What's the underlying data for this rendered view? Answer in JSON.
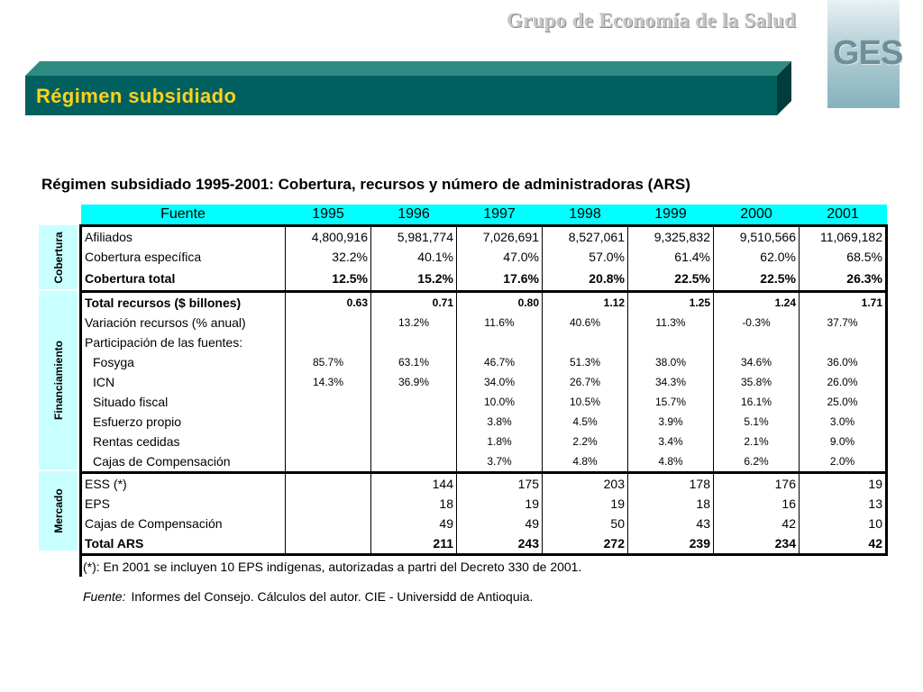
{
  "header": {
    "brand": "Grupo de Economía de la Salud",
    "logo": "GES"
  },
  "banner": {
    "title": "Régimen subsidiado"
  },
  "subtitle": "Régimen subsidiado 1995-2001: Cobertura, recursos y número de administradoras (ARS)",
  "table": {
    "columns": [
      "Fuente",
      "1995",
      "1996",
      "1997",
      "1998",
      "1999",
      "2000",
      "2001"
    ],
    "sections": {
      "cobertura": {
        "label": "Cobertura",
        "rows": [
          {
            "label": "Afiliados",
            "values": [
              "4,800,916",
              "5,981,774",
              "7,026,691",
              "8,527,061",
              "9,325,832",
              "9,510,566",
              "11,069,182"
            ]
          },
          {
            "label": "Cobertura específica",
            "values": [
              "32.2%",
              "40.1%",
              "47.0%",
              "57.0%",
              "61.4%",
              "62.0%",
              "68.5%"
            ]
          },
          {
            "label": "Cobertura total",
            "values": [
              "12.5%",
              "15.2%",
              "17.6%",
              "20.8%",
              "22.5%",
              "22.5%",
              "26.3%"
            ]
          }
        ]
      },
      "financiamiento": {
        "label": "Financiamiento",
        "rows": [
          {
            "label": "Total recursos ($ billones)",
            "values": [
              "0.63",
              "0.71",
              "0.80",
              "1.12",
              "1.25",
              "1.24",
              "1.71"
            ]
          },
          {
            "label": "Variación recursos (% anual)",
            "values": [
              "",
              "13.2%",
              "11.6%",
              "40.6%",
              "11.3%",
              "-0.3%",
              "37.7%"
            ]
          },
          {
            "label": "Participación de las fuentes:",
            "values": [
              "",
              "",
              "",
              "",
              "",
              "",
              ""
            ]
          },
          {
            "label": "Fosyga",
            "values": [
              "85.7%",
              "63.1%",
              "46.7%",
              "51.3%",
              "38.0%",
              "34.6%",
              "36.0%"
            ]
          },
          {
            "label": "ICN",
            "values": [
              "14.3%",
              "36.9%",
              "34.0%",
              "26.7%",
              "34.3%",
              "35.8%",
              "26.0%"
            ]
          },
          {
            "label": "Situado fiscal",
            "values": [
              "",
              "",
              "10.0%",
              "10.5%",
              "15.7%",
              "16.1%",
              "25.0%"
            ]
          },
          {
            "label": "Esfuerzo propio",
            "values": [
              "",
              "",
              "3.8%",
              "4.5%",
              "3.9%",
              "5.1%",
              "3.0%"
            ]
          },
          {
            "label": "Rentas cedidas",
            "values": [
              "",
              "",
              "1.8%",
              "2.2%",
              "3.4%",
              "2.1%",
              "9.0%"
            ]
          },
          {
            "label": "Cajas de Compensación",
            "values": [
              "",
              "",
              "3.7%",
              "4.8%",
              "4.8%",
              "6.2%",
              "2.0%"
            ]
          }
        ]
      },
      "mercado": {
        "label": "Mercado",
        "rows": [
          {
            "label": "ESS (*)",
            "values": [
              "",
              "144",
              "175",
              "203",
              "178",
              "176",
              "19"
            ]
          },
          {
            "label": "EPS",
            "values": [
              "",
              "18",
              "19",
              "19",
              "18",
              "16",
              "13"
            ]
          },
          {
            "label": "Cajas de Compensación",
            "values": [
              "",
              "49",
              "49",
              "50",
              "43",
              "42",
              "10"
            ]
          },
          {
            "label": "Total ARS",
            "values": [
              "",
              "211",
              "243",
              "272",
              "239",
              "234",
              "42"
            ]
          }
        ]
      }
    }
  },
  "note": "(*): En 2001 se incluyen 10 EPS indígenas, autorizadas a partri del Decreto 330 de 2001.",
  "source": {
    "label": "Fuente:",
    "text": "Informes del Consejo. Cálculos del autor. CIE - Universidd de Antioquia."
  },
  "colors": {
    "banner": "#006060",
    "header_row": "#00ffff",
    "side_label": "#c8ffff",
    "title_text": "#ffd21a"
  }
}
